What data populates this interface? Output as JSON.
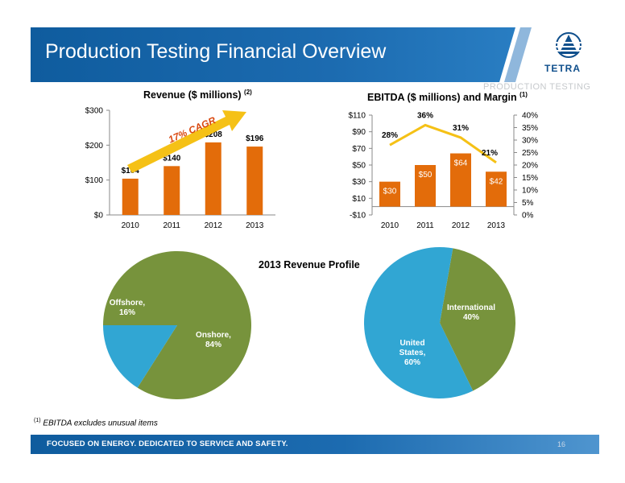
{
  "header": {
    "title": "Production Testing Financial Overview",
    "logo_text": "TETRA",
    "section_label": "PRODUCTION TESTING"
  },
  "colors": {
    "bar": "#e36c0a",
    "line": "#f5c116",
    "onshore": "#77933c",
    "offshore": "#31a6d3",
    "brand_blue": "#1a6aae"
  },
  "footnote": {
    "marker": "(1)",
    "text": "EBITDA excludes  unusual items"
  },
  "footer": {
    "tagline": "FOCUSED ON ENERGY. DEDICATED TO SERVICE AND SAFETY.",
    "page_number": "16"
  },
  "chart_data": [
    {
      "type": "bar",
      "title": "Revenue ($ millions)",
      "title_note": "(2)",
      "categories": [
        "2010",
        "2011",
        "2012",
        "2013"
      ],
      "values": [
        104,
        140,
        208,
        196
      ],
      "data_labels": [
        "$104",
        "$140",
        "$208",
        "$196"
      ],
      "ylim": [
        0,
        300
      ],
      "yticks": [
        0,
        100,
        200,
        300
      ],
      "ytick_labels": [
        "$0",
        "$100",
        "$200",
        "$300"
      ],
      "annotation": "17% CAGR",
      "grid": false
    },
    {
      "type": "bar",
      "title": "EBITDA ($ millions) and Margin",
      "title_note": "(1)",
      "categories": [
        "2010",
        "2011",
        "2012",
        "2013"
      ],
      "values": [
        30,
        50,
        64,
        42
      ],
      "data_labels": [
        "$30",
        "$50",
        "$64",
        "$42"
      ],
      "ylim": [
        -10,
        110
      ],
      "yticks": [
        -10,
        10,
        30,
        50,
        70,
        90,
        110
      ],
      "ytick_labels": [
        "-$10",
        "$10",
        "$30",
        "$50",
        "$70",
        "$90",
        "$110"
      ],
      "secondary_series": {
        "type": "line",
        "values": [
          28,
          36,
          31,
          21
        ],
        "data_labels": [
          "28%",
          "36%",
          "31%",
          "21%"
        ],
        "ylim": [
          0,
          40
        ],
        "yticks": [
          0,
          5,
          10,
          15,
          20,
          25,
          30,
          35,
          40
        ],
        "ytick_labels": [
          "0%",
          "5%",
          "10%",
          "15%",
          "20%",
          "25%",
          "30%",
          "35%",
          "40%"
        ]
      },
      "grid": false
    },
    {
      "type": "pie",
      "title": "2013 Revenue Profile",
      "slices": [
        {
          "label": "Onshore,",
          "value_label": "84%",
          "value": 84
        },
        {
          "label": "Offshore,",
          "value_label": "16%",
          "value": 16
        }
      ]
    },
    {
      "type": "pie",
      "slices": [
        {
          "label": "International",
          "value_label": "40%",
          "value": 40
        },
        {
          "label": "United States,",
          "label2": "",
          "value_label": "60%",
          "value": 60
        }
      ]
    }
  ]
}
